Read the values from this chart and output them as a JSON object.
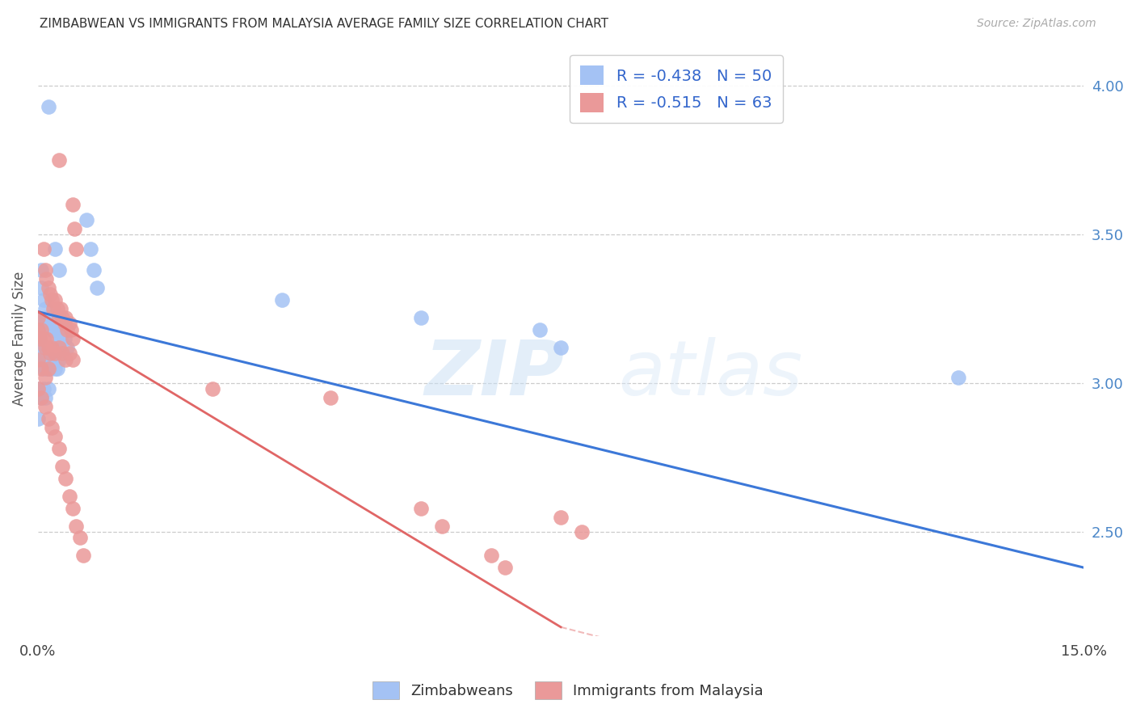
{
  "title": "ZIMBABWEAN VS IMMIGRANTS FROM MALAYSIA AVERAGE FAMILY SIZE CORRELATION CHART",
  "source": "Source: ZipAtlas.com",
  "ylabel": "Average Family Size",
  "xmin": 0.0,
  "xmax": 15.0,
  "ymin": 2.15,
  "ymax": 4.15,
  "right_yticks": [
    2.5,
    3.0,
    3.5,
    4.0
  ],
  "blue_color": "#a4c2f4",
  "pink_color": "#ea9999",
  "blue_line_color": "#3c78d8",
  "pink_line_color": "#e06666",
  "blue_scatter": [
    [
      0.15,
      3.93
    ],
    [
      0.7,
      3.55
    ],
    [
      0.75,
      3.45
    ],
    [
      0.8,
      3.38
    ],
    [
      0.85,
      3.32
    ],
    [
      0.25,
      3.45
    ],
    [
      0.3,
      3.38
    ],
    [
      0.05,
      3.38
    ],
    [
      0.05,
      3.32
    ],
    [
      0.08,
      3.28
    ],
    [
      0.1,
      3.25
    ],
    [
      0.12,
      3.22
    ],
    [
      0.15,
      3.2
    ],
    [
      0.18,
      3.22
    ],
    [
      0.2,
      3.18
    ],
    [
      0.22,
      3.2
    ],
    [
      0.25,
      3.18
    ],
    [
      0.28,
      3.15
    ],
    [
      0.3,
      3.18
    ],
    [
      0.32,
      3.15
    ],
    [
      0.35,
      3.18
    ],
    [
      0.38,
      3.15
    ],
    [
      0.4,
      3.18
    ],
    [
      0.42,
      3.12
    ],
    [
      0.0,
      3.22
    ],
    [
      0.0,
      3.18
    ],
    [
      0.02,
      3.15
    ],
    [
      0.0,
      3.12
    ],
    [
      0.02,
      3.1
    ],
    [
      0.05,
      3.08
    ],
    [
      0.08,
      3.05
    ],
    [
      0.1,
      3.08
    ],
    [
      0.12,
      3.05
    ],
    [
      0.15,
      3.05
    ],
    [
      0.18,
      3.05
    ],
    [
      0.2,
      3.08
    ],
    [
      0.25,
      3.05
    ],
    [
      0.28,
      3.05
    ],
    [
      0.3,
      3.08
    ],
    [
      0.0,
      2.98
    ],
    [
      0.05,
      2.95
    ],
    [
      0.08,
      2.98
    ],
    [
      0.1,
      2.95
    ],
    [
      0.15,
      2.98
    ],
    [
      3.5,
      3.28
    ],
    [
      5.5,
      3.22
    ],
    [
      7.2,
      3.18
    ],
    [
      7.5,
      3.12
    ],
    [
      13.2,
      3.02
    ],
    [
      0.0,
      2.88
    ]
  ],
  "pink_scatter": [
    [
      0.3,
      3.75
    ],
    [
      0.5,
      3.6
    ],
    [
      0.52,
      3.52
    ],
    [
      0.55,
      3.45
    ],
    [
      0.08,
      3.45
    ],
    [
      0.1,
      3.38
    ],
    [
      0.12,
      3.35
    ],
    [
      0.15,
      3.32
    ],
    [
      0.18,
      3.3
    ],
    [
      0.2,
      3.28
    ],
    [
      0.22,
      3.25
    ],
    [
      0.25,
      3.28
    ],
    [
      0.28,
      3.25
    ],
    [
      0.3,
      3.22
    ],
    [
      0.32,
      3.25
    ],
    [
      0.35,
      3.22
    ],
    [
      0.38,
      3.2
    ],
    [
      0.4,
      3.22
    ],
    [
      0.42,
      3.18
    ],
    [
      0.45,
      3.2
    ],
    [
      0.48,
      3.18
    ],
    [
      0.5,
      3.15
    ],
    [
      0.0,
      3.22
    ],
    [
      0.0,
      3.18
    ],
    [
      0.02,
      3.15
    ],
    [
      0.05,
      3.18
    ],
    [
      0.08,
      3.15
    ],
    [
      0.1,
      3.12
    ],
    [
      0.12,
      3.15
    ],
    [
      0.15,
      3.12
    ],
    [
      0.18,
      3.1
    ],
    [
      0.2,
      3.12
    ],
    [
      0.25,
      3.1
    ],
    [
      0.3,
      3.12
    ],
    [
      0.35,
      3.1
    ],
    [
      0.4,
      3.08
    ],
    [
      0.45,
      3.1
    ],
    [
      0.5,
      3.08
    ],
    [
      0.0,
      3.08
    ],
    [
      0.05,
      3.05
    ],
    [
      0.1,
      3.02
    ],
    [
      0.15,
      3.05
    ],
    [
      0.0,
      2.98
    ],
    [
      0.05,
      2.95
    ],
    [
      0.1,
      2.92
    ],
    [
      0.15,
      2.88
    ],
    [
      0.2,
      2.85
    ],
    [
      0.25,
      2.82
    ],
    [
      0.3,
      2.78
    ],
    [
      0.35,
      2.72
    ],
    [
      0.4,
      2.68
    ],
    [
      0.45,
      2.62
    ],
    [
      0.5,
      2.58
    ],
    [
      0.55,
      2.52
    ],
    [
      0.6,
      2.48
    ],
    [
      0.65,
      2.42
    ],
    [
      2.5,
      2.98
    ],
    [
      4.2,
      2.95
    ],
    [
      5.5,
      2.58
    ],
    [
      5.8,
      2.52
    ],
    [
      6.5,
      2.42
    ],
    [
      6.7,
      2.38
    ],
    [
      7.5,
      2.55
    ],
    [
      7.8,
      2.5
    ]
  ],
  "blue_trend": [
    0.0,
    15.0,
    3.24,
    2.38
  ],
  "pink_trend_solid": [
    0.0,
    7.5,
    3.24,
    2.18
  ],
  "pink_trend_dashed": [
    7.5,
    13.0,
    2.18,
    1.85
  ]
}
